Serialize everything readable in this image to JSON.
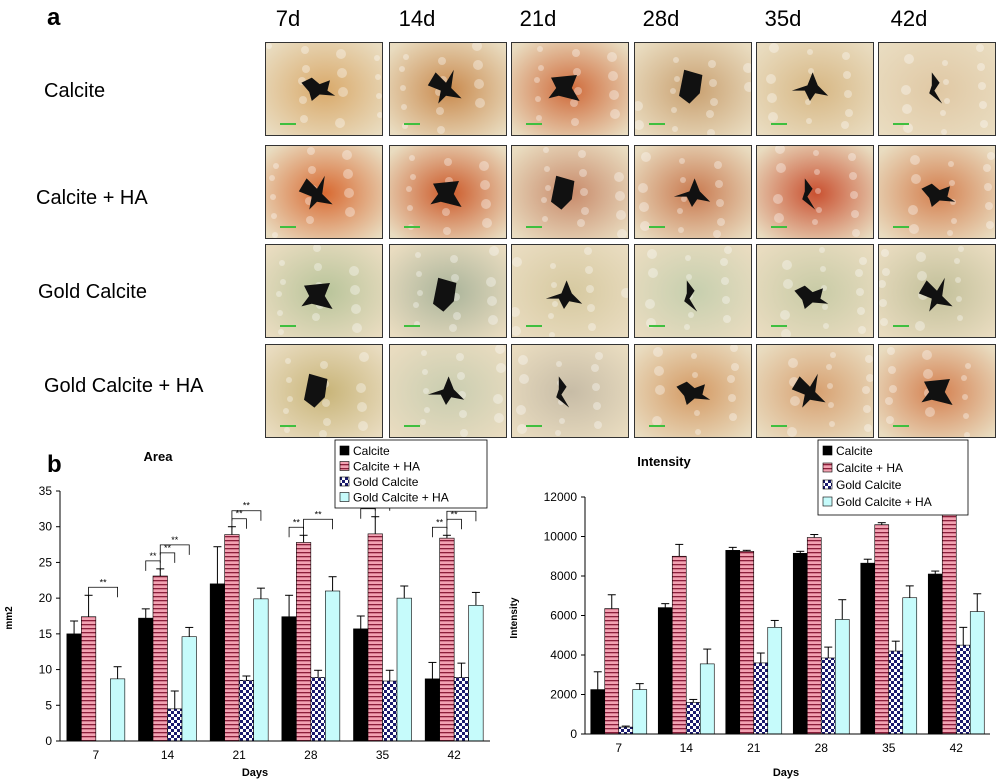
{
  "panel_a": {
    "letter": "a",
    "days": [
      "7d",
      "14d",
      "21d",
      "28d",
      "35d",
      "42d"
    ],
    "rows": [
      "Calcite",
      "Calcite + HA",
      "Gold Calcite",
      "Gold Calcite + HA"
    ],
    "tile_palettes": {
      "Calcite": [
        "#d9a96a",
        "#c98a4e",
        "#cf6a3a",
        "#c9a070",
        "#d7b784",
        "#e0c8a4"
      ],
      "Calcite + HA": [
        "#d86a32",
        "#cc5a2a",
        "#c88a6a",
        "#c97a50",
        "#c95030",
        "#d48050"
      ],
      "Gold Calcite": [
        "#b8c49a",
        "#aab49a",
        "#d6c9a0",
        "#c6cfae",
        "#c8cba6",
        "#c2c09a"
      ],
      "Gold Calcite + HA": [
        "#c8b478",
        "#c9cdb0",
        "#c7bca6",
        "#d49a64",
        "#d7a070",
        "#d48050"
      ]
    }
  },
  "chart_data": [
    {
      "panel_letter": "b",
      "type": "bar",
      "title": "Area",
      "xlabel": "Days",
      "ylabel": "mm2",
      "ylim": [
        0,
        35
      ],
      "yticks": [
        0,
        5,
        10,
        15,
        20,
        25,
        30,
        35
      ],
      "categories": [
        "7",
        "14",
        "21",
        "28",
        "35",
        "42"
      ],
      "series": [
        {
          "name": "Calcite",
          "values": [
            15,
            17.2,
            22,
            17.4,
            15.7,
            8.7
          ],
          "errors": [
            1.8,
            1.3,
            5.2,
            3.0,
            1.8,
            2.3
          ]
        },
        {
          "name": "Calcite + HA",
          "values": [
            17.4,
            23.1,
            28.9,
            27.8,
            29.0,
            28.4
          ],
          "errors": [
            3.0,
            1.0,
            1.1,
            1.0,
            2.4,
            0.4
          ]
        },
        {
          "name": "Gold Calcite",
          "values": [
            0,
            4.5,
            8.5,
            8.9,
            8.4,
            8.9
          ],
          "errors": [
            0,
            2.5,
            0.6,
            1.0,
            1.5,
            2.0
          ]
        },
        {
          "name": "Gold Calcite + HA",
          "values": [
            8.7,
            14.6,
            19.9,
            21.0,
            20.0,
            19.0
          ],
          "errors": [
            1.7,
            1.3,
            1.5,
            2.0,
            1.7,
            1.8
          ]
        }
      ],
      "annotation": "**",
      "legend_position": "top"
    },
    {
      "type": "bar",
      "title": "Intensity",
      "xlabel": "Days",
      "ylabel": "Intensity",
      "ylim": [
        0,
        12000
      ],
      "yticks": [
        0,
        2000,
        4000,
        6000,
        8000,
        10000,
        12000
      ],
      "categories": [
        "7",
        "14",
        "21",
        "28",
        "35",
        "42"
      ],
      "series": [
        {
          "name": "Calcite",
          "values": [
            2250,
            6400,
            9300,
            9150,
            8650,
            8100
          ],
          "errors": [
            900,
            200,
            150,
            100,
            200,
            150
          ]
        },
        {
          "name": "Calcite + HA",
          "values": [
            6350,
            9000,
            9250,
            9950,
            10600,
            11100
          ],
          "errors": [
            700,
            600,
            50,
            150,
            100,
            900
          ]
        },
        {
          "name": "Gold Calcite",
          "values": [
            350,
            1600,
            3600,
            3850,
            4200,
            4500
          ],
          "errors": [
            50,
            150,
            500,
            550,
            500,
            900
          ]
        },
        {
          "name": "Gold Calcite + HA",
          "values": [
            2250,
            3550,
            5400,
            5800,
            6900,
            6200
          ],
          "errors": [
            300,
            750,
            350,
            1000,
            600,
            900
          ]
        }
      ],
      "legend_position": "top-right"
    }
  ],
  "colors": {
    "calcite": "#000000",
    "calcite_ha": "#f2a2b2",
    "calcite_ha_stripe": "#8b1e3a",
    "gold_calcite": "#ffffff",
    "gold_calcite_pattern": "#1a1a6e",
    "gold_calcite_ha": "#c6fbfb"
  }
}
